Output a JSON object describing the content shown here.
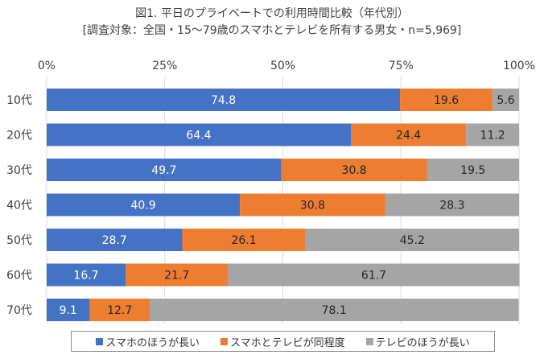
{
  "chart_data": {
    "type": "bar",
    "orientation": "horizontal",
    "stacked": "percent",
    "title": "図1. 平日のプライベートでの利用時間比較（年代別）",
    "subtitle": "[調査対象：全国・15～79歳のスマホとテレビを所有する男女・n=5,969]",
    "xlabel": "",
    "ylabel": "",
    "xlim": [
      0,
      100
    ],
    "x_ticks": [
      "0%",
      "25%",
      "50%",
      "75%",
      "100%"
    ],
    "x_tick_values": [
      0,
      25,
      50,
      75,
      100
    ],
    "x_axis_position": "top",
    "grid": true,
    "legend_position": "bottom",
    "categories": [
      "10代",
      "20代",
      "30代",
      "40代",
      "50代",
      "60代",
      "70代"
    ],
    "series": [
      {
        "name": "スマホのほうが長い",
        "color": "#4472c4",
        "label_color": "#ffffff",
        "values": [
          74.8,
          64.4,
          49.7,
          40.9,
          28.7,
          16.7,
          9.1
        ]
      },
      {
        "name": "スマホとテレビが同程度",
        "color": "#ed7d31",
        "label_color": "#262626",
        "values": [
          19.6,
          24.4,
          30.8,
          30.8,
          26.1,
          21.7,
          12.7
        ]
      },
      {
        "name": "テレビのほうが長い",
        "color": "#a5a5a5",
        "label_color": "#262626",
        "values": [
          5.6,
          11.2,
          19.5,
          28.3,
          45.2,
          61.7,
          78.1
        ]
      }
    ]
  }
}
